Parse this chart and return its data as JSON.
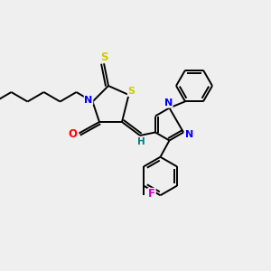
{
  "bg_color": "#efefef",
  "bond_color": "#000000",
  "atom_colors": {
    "S": "#cccc00",
    "N": "#0000ff",
    "O": "#ff0000",
    "F": "#cc00cc",
    "H": "#008080",
    "C": "#000000"
  },
  "figsize": [
    3.0,
    3.0
  ],
  "dpi": 100,
  "xlim": [
    0,
    12
  ],
  "ylim": [
    0,
    12
  ]
}
